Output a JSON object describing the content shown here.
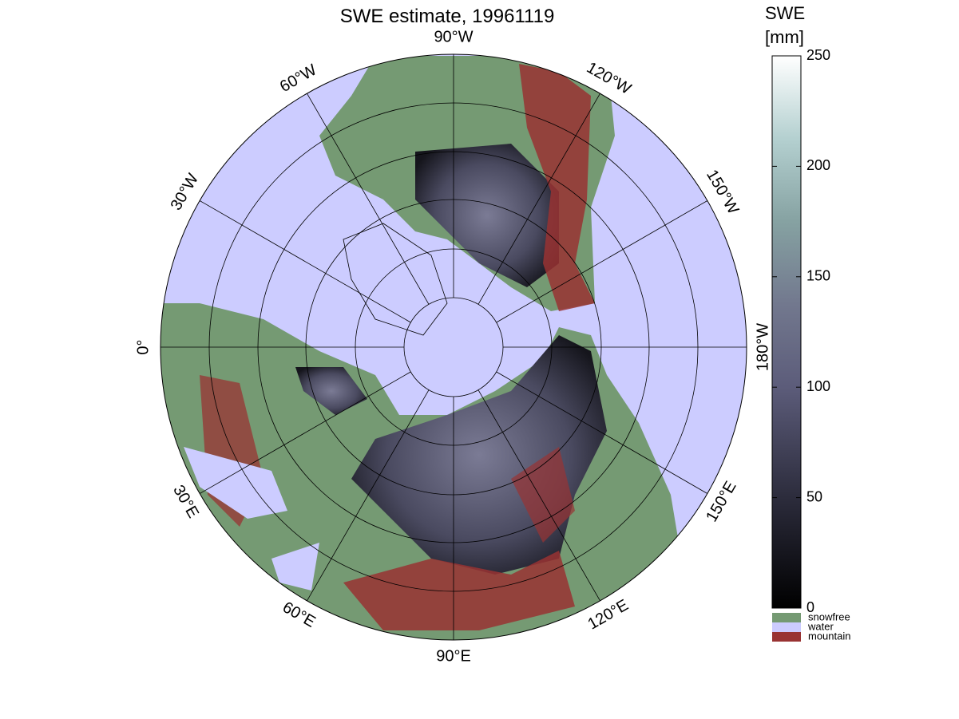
{
  "title": "SWE estimate, 19961119",
  "longitude_labels": [
    "90°W",
    "120°W",
    "150°W",
    "180°W",
    "150°E",
    "120°E",
    "90°E",
    "60°E",
    "30°E",
    "0°",
    "30°W",
    "60°W"
  ],
  "colorbar": {
    "label": [
      "SWE",
      "[mm]"
    ],
    "lim": [
      0,
      250
    ],
    "ticks": [
      0,
      50,
      100,
      150,
      200,
      250
    ]
  },
  "legend": [
    {
      "name": "snowfree",
      "color": "#759a73"
    },
    {
      "name": "water",
      "color": "#ccccff"
    },
    {
      "name": "mountain",
      "color": "#993333"
    }
  ]
}
